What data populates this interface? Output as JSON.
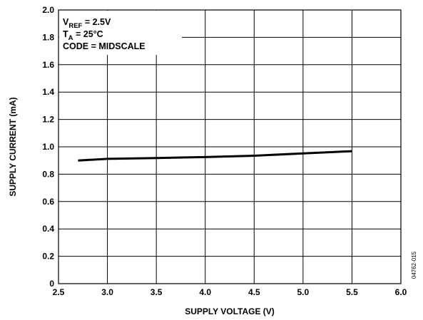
{
  "chart_data": {
    "type": "line",
    "xlabel": "SUPPLY VOLTAGE (V)",
    "ylabel": "SUPPLY CURRENT (mA)",
    "xlim": [
      2.5,
      6.0
    ],
    "ylim": [
      0,
      2.0
    ],
    "x_ticks": [
      "2.5",
      "3.0",
      "3.5",
      "4.0",
      "4.5",
      "5.0",
      "5.5",
      "6.0"
    ],
    "y_ticks": [
      "0",
      "0.2",
      "0.4",
      "0.6",
      "0.8",
      "1.0",
      "1.2",
      "1.4",
      "1.6",
      "1.8",
      "2.0"
    ],
    "grid": true,
    "annotations": [
      {
        "main": "V",
        "sub": "REF",
        "rest": " = 2.5V"
      },
      {
        "main": "T",
        "sub": "A",
        "rest": " = 25°C"
      },
      {
        "main": "CODE = MIDSCALE",
        "sub": "",
        "rest": ""
      }
    ],
    "figure_id": "04762-015",
    "series": [
      {
        "x": [
          2.7,
          3.0,
          3.5,
          4.0,
          4.5,
          5.0,
          5.5
        ],
        "y": [
          0.9,
          0.912,
          0.918,
          0.925,
          0.935,
          0.952,
          0.968
        ]
      }
    ]
  }
}
